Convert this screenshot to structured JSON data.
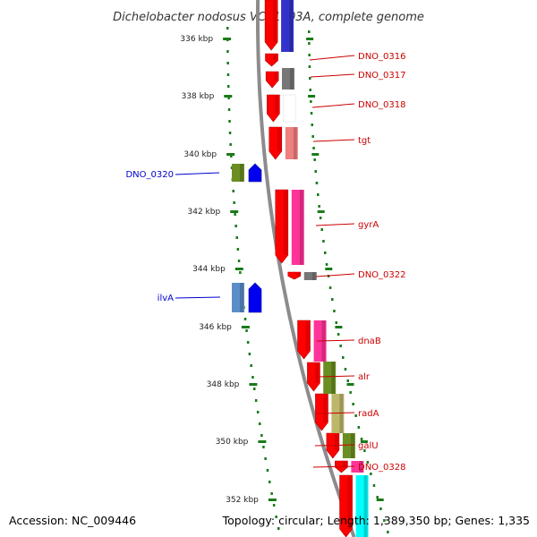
{
  "title": "Dichelobacter nodosus VCS1703A, complete genome",
  "footer": {
    "accession": "Accession: NC_009446",
    "topology": "Topology: circular; Length: 1,389,350 bp; Genes: 1,335"
  },
  "colors": {
    "backbone": "#8c8c8c",
    "ruler": "#1a7a1a",
    "forward_label": "#cc0000",
    "reverse_label": "#0000cc",
    "cds_track": "#ff0000",
    "reverse_cds": "#0000ee"
  },
  "ticks": [
    "336 kbp",
    "338 kbp",
    "340 kbp",
    "342 kbp",
    "344 kbp",
    "346 kbp",
    "348 kbp",
    "350 kbp",
    "352 kbp"
  ],
  "forward_labels": [
    "DNO_0316",
    "DNO_0317",
    "DNO_0318",
    "tgt",
    "gyrA",
    "DNO_0322",
    "dnaB",
    "alr",
    "radA",
    "galU",
    "DNO_0328"
  ],
  "reverse_labels": [
    "DNO_0320",
    "ilvA"
  ],
  "feature_colors": {
    "DNO_0316": "#3333cc",
    "DNO_0317": "#777777",
    "DNO_0318": "#ffffff",
    "tgt": "#f08080",
    "gyrA": "#ff3399",
    "DNO_0322": "#777777",
    "dnaB": "#ff3399",
    "alr": "#6b8e23",
    "radA": "#bdb76b",
    "galU": "#6b8e23",
    "DNO_0328": "#ff3399",
    "next": "#00ffff",
    "DNO_0320": "#6b8e23",
    "ilvA": "#5b8ec8"
  }
}
